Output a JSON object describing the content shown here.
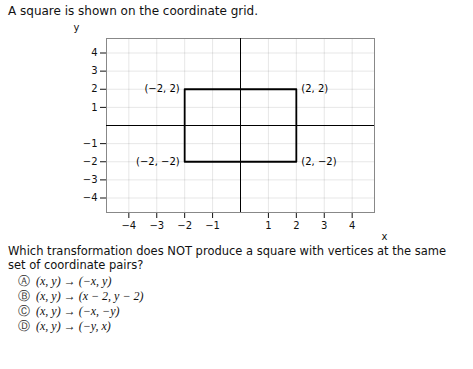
{
  "chart_data": {
    "type": "line",
    "title": "A square is shown on the coordinate grid.",
    "x": [
      -2,
      2,
      2,
      -2,
      -2
    ],
    "values": [
      2,
      2,
      -2,
      -2,
      2
    ],
    "color": "#000000",
    "x_label": "x",
    "y_label": "y",
    "xlim": [
      -4.8,
      4.8
    ],
    "ylim": [
      -4.8,
      4.8
    ],
    "xticks": [
      -4,
      -3,
      -2,
      -1,
      1,
      2,
      3,
      4
    ],
    "yticks": [
      -4,
      -3,
      -2,
      -1,
      1,
      2,
      3,
      4
    ],
    "grid": true,
    "annotations": [
      {
        "text": "(−2, 2)",
        "x": -2,
        "y": 2
      },
      {
        "text": "(2, 2)",
        "x": 2,
        "y": 2
      },
      {
        "text": "(−2, −2)",
        "x": -2,
        "y": -2
      },
      {
        "text": "(2, −2)",
        "x": 2,
        "y": -2
      }
    ],
    "question": "Which transformation does NOT produce a square with vertices at the same set of coordinate pairs?",
    "options": [
      {
        "label": "Ⓐ",
        "text": "(x, y) → (−x, y)"
      },
      {
        "label": "Ⓑ",
        "text": "(x, y) → (x − 2, y − 2)"
      },
      {
        "label": "Ⓒ",
        "text": "(x, y) → (−x, −y)"
      },
      {
        "label": "Ⓓ",
        "text": "(x, y) → (−y, x)"
      }
    ]
  }
}
